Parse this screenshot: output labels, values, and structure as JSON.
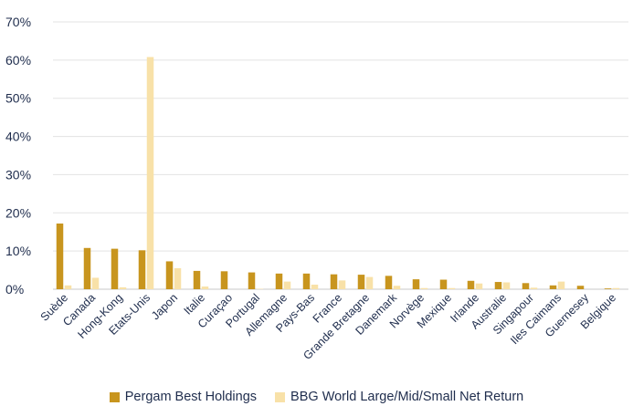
{
  "chart_data": {
    "type": "bar",
    "title": "",
    "xlabel": "",
    "ylabel": "",
    "ylim": [
      0,
      70
    ],
    "y_ticks": [
      "0%",
      "10%",
      "20%",
      "30%",
      "40%",
      "50%",
      "60%",
      "70%"
    ],
    "grid": "horizontal",
    "legend_position": "bottom",
    "categories": [
      "Suède",
      "Canada",
      "Hong-Kong",
      "Etats-Unis",
      "Japon",
      "Italie",
      "Curaçao",
      "Portugal",
      "Allemagne",
      "Pays-Bas",
      "France",
      "Grande Bretagne",
      "Danemark",
      "Norvège",
      "Mexique",
      "Irlande",
      "Australie",
      "Singapour",
      "Iles Caimans",
      "Guernesey",
      "Belgique"
    ],
    "series": [
      {
        "name": "Pergam Best Holdings",
        "color": "#c8951e",
        "values": [
          17.2,
          10.8,
          10.6,
          10.2,
          7.3,
          4.8,
          4.7,
          4.4,
          4.1,
          4.1,
          3.9,
          3.8,
          3.5,
          2.6,
          2.5,
          2.2,
          1.9,
          1.6,
          1.0,
          0.9,
          0.2
        ]
      },
      {
        "name": "BBG World Large/Mid/Small Net Return",
        "color": "#f8e1a8",
        "values": [
          1.0,
          3.0,
          0.5,
          60.8,
          5.5,
          0.7,
          0.0,
          0.1,
          2.0,
          1.2,
          2.3,
          3.2,
          0.9,
          0.3,
          0.3,
          1.5,
          1.8,
          0.4,
          2.0,
          0.0,
          0.3
        ]
      }
    ]
  }
}
